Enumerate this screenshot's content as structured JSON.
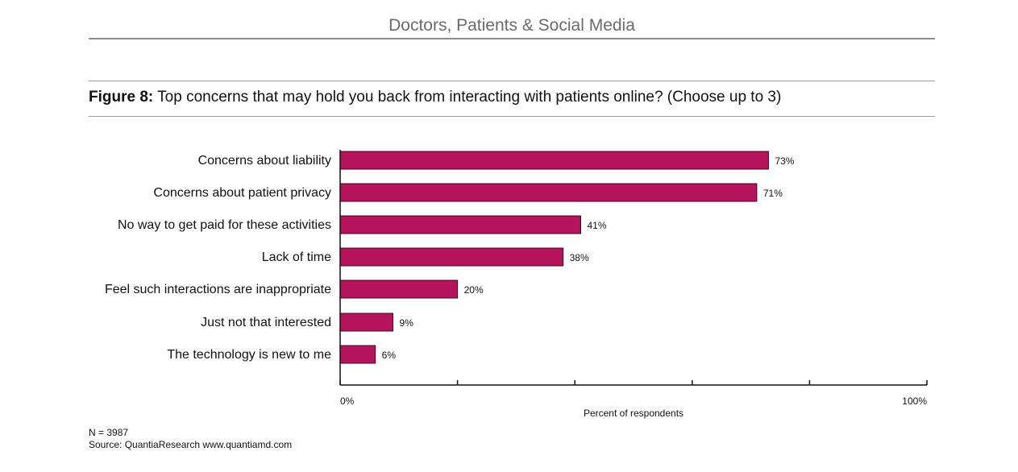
{
  "header": {
    "title": "Doctors, Patients & Social Media"
  },
  "figure": {
    "label": "Figure 8:",
    "caption": " Top concerns that may hold you back from interacting with patients online? (Choose up to 3)"
  },
  "chart_data": {
    "type": "bar",
    "orientation": "horizontal",
    "categories": [
      "Concerns about liability",
      "Concerns about patient privacy",
      "No way to get paid for these activities",
      "Lack of time",
      "Feel such interactions are inappropriate",
      "Just not that interested",
      "The technology is new to me"
    ],
    "values": [
      73,
      71,
      41,
      38,
      20,
      9,
      6
    ],
    "value_labels": [
      "73%",
      "71%",
      "41%",
      "38%",
      "20%",
      "9%",
      "6%"
    ],
    "xlim": [
      0,
      100
    ],
    "tick_labels": {
      "min": "0%",
      "max": "100%"
    },
    "xlabel": "Percent of respondents",
    "bar_color": "#b5135c",
    "grid": false,
    "legend": "none"
  },
  "footnotes": {
    "n": "N = 3987",
    "source": "Source: QuantiaResearch  www.quantiamd.com"
  }
}
